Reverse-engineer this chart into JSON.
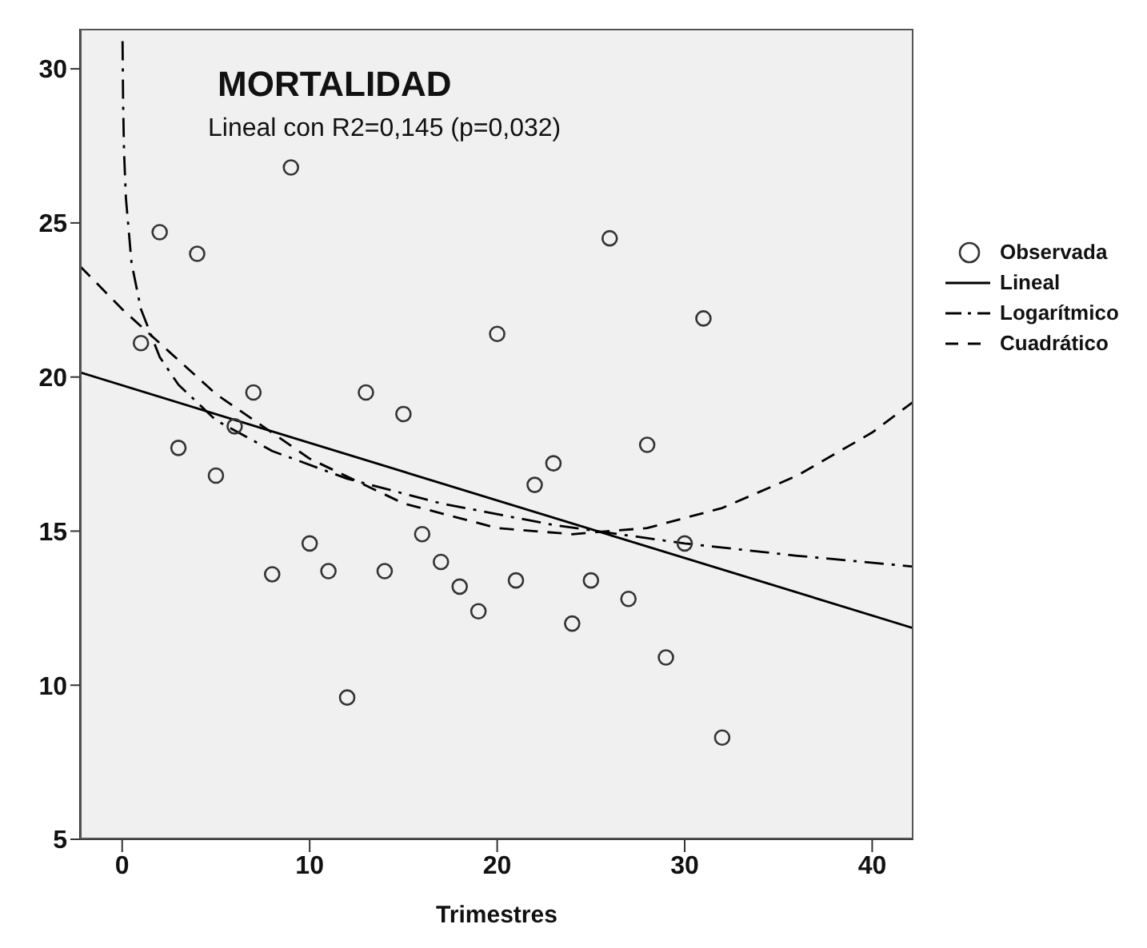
{
  "chart_data": {
    "type": "scatter",
    "title": "MORTALIDAD",
    "subtitle": "Lineal con R2=0,145 (p=0,032)",
    "xlabel": "Trimestres",
    "x": [
      1,
      2,
      3,
      4,
      5,
      6,
      7,
      8,
      9,
      10,
      11,
      12,
      13,
      14,
      15,
      16,
      17,
      18,
      19,
      20,
      21,
      22,
      23,
      24,
      25,
      26,
      27,
      28,
      29,
      30,
      31,
      32
    ],
    "series": [
      {
        "name": "Observada",
        "color": "#333333",
        "marker": "circle",
        "values": [
          21.1,
          24.7,
          17.7,
          24.0,
          16.8,
          18.4,
          19.5,
          13.6,
          26.8,
          14.6,
          13.7,
          9.6,
          19.5,
          13.7,
          18.8,
          14.9,
          14.0,
          13.2,
          12.4,
          21.4,
          13.4,
          16.5,
          17.2,
          12.0,
          13.4,
          24.5,
          12.8,
          17.8,
          10.9,
          14.6,
          21.9,
          8.3
        ]
      },
      {
        "name": "Lineal",
        "type": "line",
        "color": "#000000",
        "line_style": "solid",
        "marker": "none",
        "x": [
          -2.25,
          42.2
        ],
        "values": [
          20.15,
          11.85
        ]
      },
      {
        "name": "Logarítmico",
        "type": "line",
        "color": "#000000",
        "line_style": "dashdot",
        "marker": "none",
        "x": [
          0.02,
          0.05,
          0.1,
          0.2,
          0.5,
          1,
          2,
          3,
          5,
          8,
          12,
          17,
          23,
          30,
          36,
          42.2
        ],
        "values": [
          30.9,
          28.9,
          27.3,
          25.8,
          23.7,
          22.2,
          20.65,
          19.75,
          18.6,
          17.6,
          16.7,
          15.9,
          15.2,
          14.6,
          14.2,
          13.85
        ]
      },
      {
        "name": "Cuadrático",
        "type": "line",
        "color": "#000000",
        "line_style": "dashed",
        "marker": "none",
        "x": [
          -2.25,
          0,
          5,
          10,
          15,
          20,
          24,
          28,
          32,
          36,
          40,
          42.2
        ],
        "values": [
          23.6,
          22.2,
          19.45,
          17.35,
          15.9,
          15.1,
          14.9,
          15.1,
          15.75,
          16.8,
          18.2,
          19.2
        ]
      }
    ],
    "xlim": [
      -2.25,
      42.2
    ],
    "xticks": [
      0,
      10,
      20,
      30,
      40
    ],
    "ylim": [
      5,
      31.3
    ],
    "yticks": [
      5,
      10,
      15,
      20,
      25,
      30
    ],
    "legend": "right"
  }
}
